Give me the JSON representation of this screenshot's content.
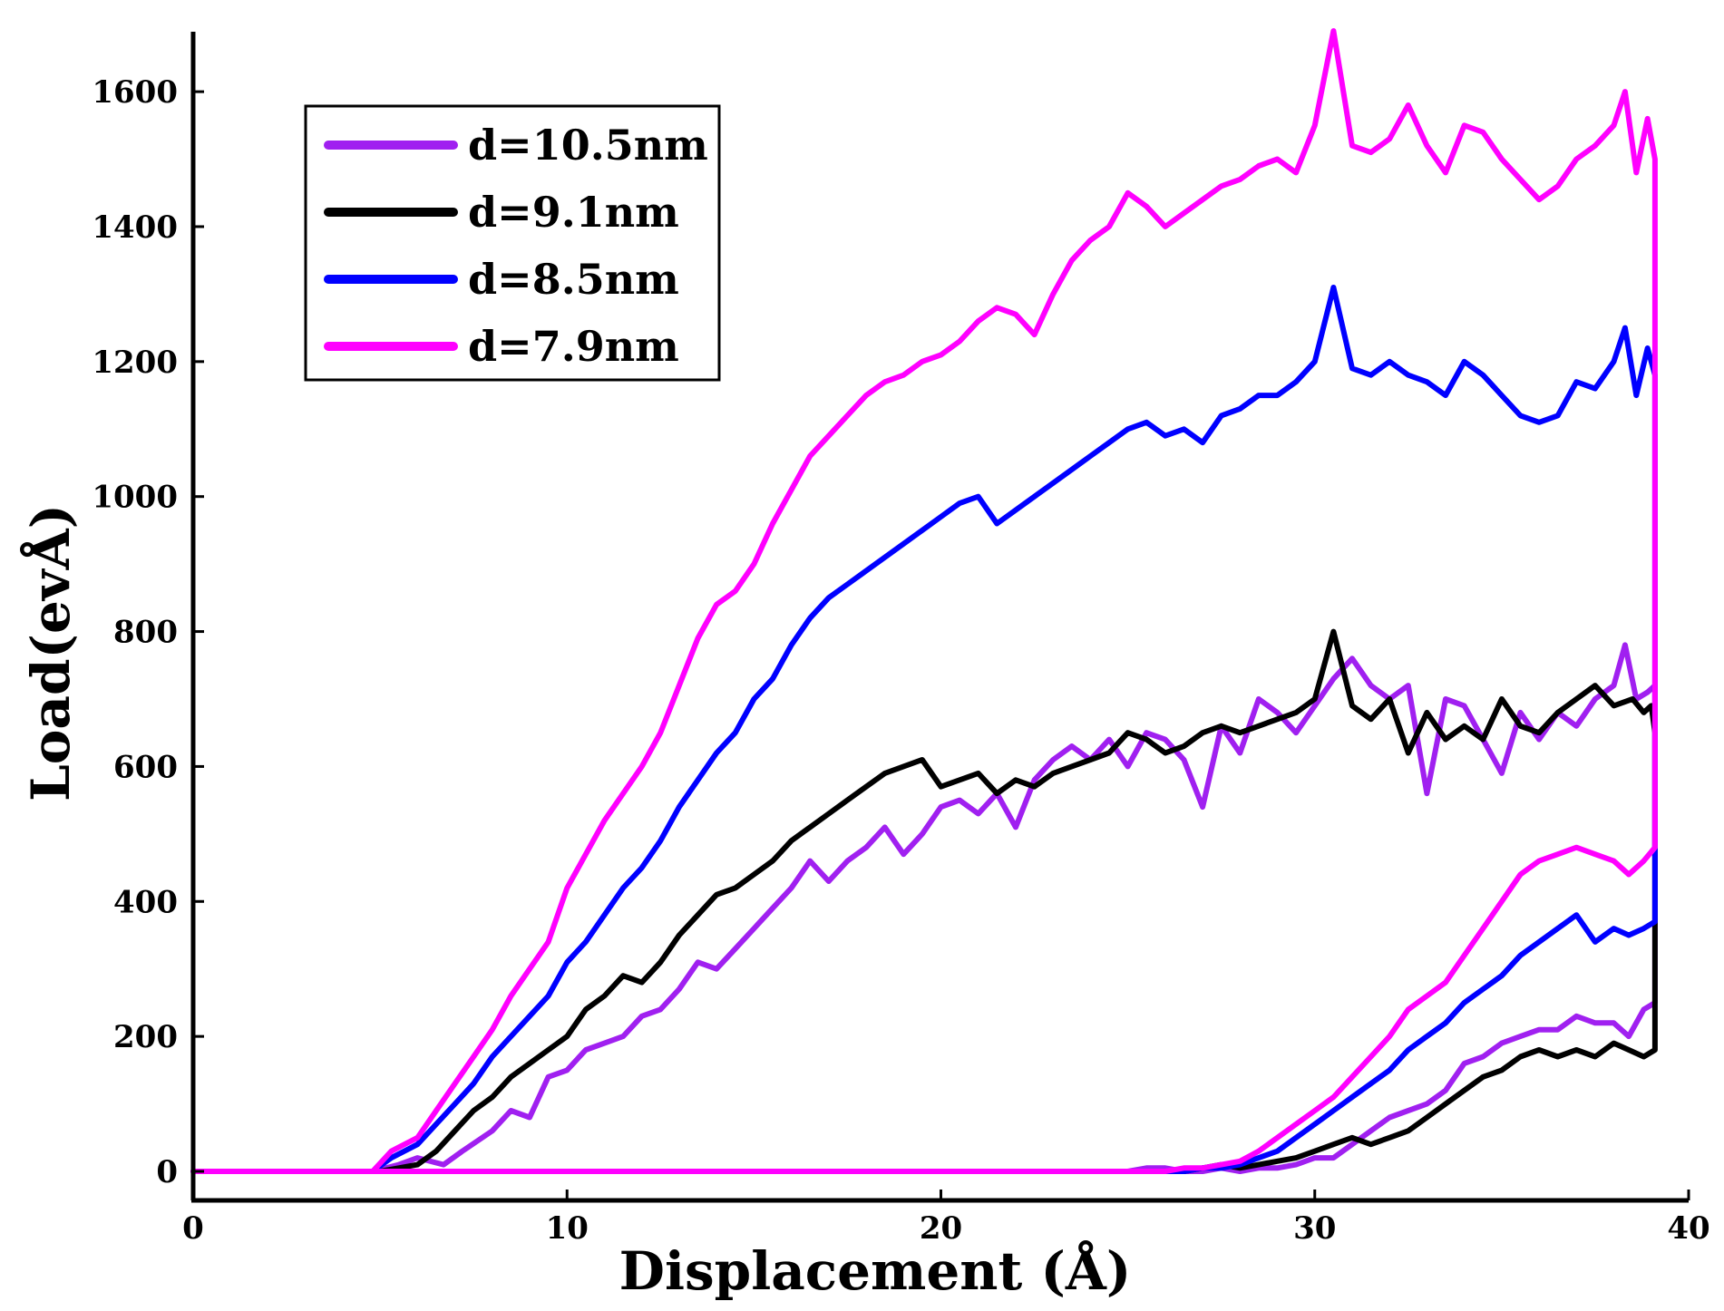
{
  "chart_data": {
    "type": "line",
    "title": "",
    "xlabel": "Displacement (Å)",
    "ylabel": "Load(evÅ)",
    "xlim": [
      0,
      40
    ],
    "ylim": [
      -50,
      1700
    ],
    "xticks": [
      "0",
      "10",
      "20",
      "30",
      "40"
    ],
    "yticks": [
      "0",
      "200",
      "400",
      "600",
      "800",
      "1000",
      "1200",
      "1400",
      "1600"
    ],
    "grid": false,
    "legend_position": "top-left",
    "series": [
      {
        "name": "d=10.5nm",
        "color": "#A020F0",
        "x": [
          0,
          4.8,
          5.5,
          6,
          6.7,
          7.2,
          8,
          8.5,
          9,
          9.5,
          10,
          10.5,
          11,
          11.5,
          12,
          12.5,
          13,
          13.5,
          14,
          14.5,
          15,
          15.5,
          16,
          16.5,
          17,
          17.5,
          18,
          18.5,
          19,
          19.5,
          20,
          20.5,
          21,
          21.5,
          22,
          22.5,
          23,
          23.5,
          24,
          24.5,
          25,
          25.5,
          26,
          26.5,
          27,
          27.5,
          28,
          28.5,
          29,
          29.5,
          30,
          30.5,
          31,
          31.5,
          32,
          32.5,
          33,
          33.5,
          34,
          34.5,
          35,
          35.5,
          36,
          36.5,
          37,
          37.5,
          38,
          38.3,
          38.6,
          38.9,
          39.1,
          39.1,
          38.8,
          38.4,
          38,
          37.5,
          37,
          36.5,
          36,
          35.5,
          35,
          34.5,
          34,
          33.5,
          33,
          32.5,
          32,
          31.5,
          31,
          30.5,
          30,
          29.5,
          29,
          28.5,
          28,
          27.5,
          27,
          26.5,
          26,
          25.5,
          25,
          24.5,
          24,
          23.5,
          23,
          22,
          20,
          10,
          0
        ],
        "y": [
          0,
          0,
          10,
          20,
          10,
          30,
          60,
          90,
          80,
          140,
          150,
          180,
          190,
          200,
          230,
          240,
          270,
          310,
          300,
          330,
          360,
          390,
          420,
          460,
          430,
          460,
          480,
          510,
          470,
          500,
          540,
          550,
          530,
          560,
          510,
          580,
          610,
          630,
          610,
          640,
          600,
          650,
          640,
          610,
          540,
          660,
          620,
          700,
          680,
          650,
          690,
          730,
          760,
          720,
          700,
          720,
          560,
          700,
          690,
          640,
          590,
          680,
          640,
          680,
          660,
          700,
          720,
          780,
          700,
          710,
          720,
          250,
          240,
          200,
          220,
          220,
          230,
          210,
          210,
          200,
          190,
          170,
          160,
          120,
          100,
          90,
          80,
          60,
          40,
          20,
          20,
          10,
          5,
          5,
          0,
          5,
          0,
          0,
          5,
          5,
          0,
          0,
          0,
          0,
          0,
          0,
          0,
          0,
          0
        ]
      },
      {
        "name": "d=9.1nm",
        "color": "#000000",
        "x": [
          0,
          5,
          5.5,
          6,
          6.5,
          7,
          7.5,
          8,
          8.5,
          9,
          9.5,
          10,
          10.5,
          11,
          11.5,
          12,
          12.5,
          13,
          13.5,
          14,
          14.5,
          15,
          15.5,
          16,
          16.5,
          17,
          17.5,
          18,
          18.5,
          19,
          19.5,
          20,
          20.5,
          21,
          21.5,
          22,
          22.5,
          23,
          23.5,
          24,
          24.5,
          25,
          25.5,
          26,
          26.5,
          27,
          27.5,
          28,
          28.5,
          29,
          29.5,
          30,
          30.5,
          31,
          31.5,
          32,
          32.5,
          33,
          33.5,
          34,
          34.5,
          35,
          35.5,
          36,
          36.5,
          37,
          37.5,
          38,
          38.5,
          38.8,
          39,
          39.1,
          39.1,
          38.8,
          38.4,
          38,
          37.5,
          37,
          36.5,
          36,
          35.5,
          35,
          34.5,
          34,
          33.5,
          33,
          32.5,
          32,
          31.5,
          31,
          30.5,
          30,
          29.5,
          29,
          28.5,
          28,
          27.5,
          27,
          26.5,
          26,
          25,
          24,
          23,
          22,
          20,
          10,
          0
        ],
        "y": [
          0,
          0,
          5,
          10,
          30,
          60,
          90,
          110,
          140,
          160,
          180,
          200,
          240,
          260,
          290,
          280,
          310,
          350,
          380,
          410,
          420,
          440,
          460,
          490,
          510,
          530,
          550,
          570,
          590,
          600,
          610,
          570,
          580,
          590,
          560,
          580,
          570,
          590,
          600,
          610,
          620,
          650,
          640,
          620,
          630,
          650,
          660,
          650,
          660,
          670,
          680,
          700,
          800,
          690,
          670,
          700,
          620,
          680,
          640,
          660,
          640,
          700,
          660,
          650,
          680,
          700,
          720,
          690,
          700,
          680,
          690,
          650,
          180,
          170,
          180,
          190,
          170,
          180,
          170,
          180,
          170,
          150,
          140,
          120,
          100,
          80,
          60,
          50,
          40,
          50,
          40,
          30,
          20,
          15,
          10,
          5,
          10,
          5,
          0,
          0,
          0,
          0,
          0,
          0,
          0,
          0,
          0
        ]
      },
      {
        "name": "d=8.5nm",
        "color": "#0000FF",
        "x": [
          0,
          4.8,
          5.3,
          6,
          6.5,
          7,
          7.5,
          8,
          8.5,
          9,
          9.5,
          10,
          10.5,
          11,
          11.5,
          12,
          12.5,
          13,
          13.5,
          14,
          14.5,
          15,
          15.5,
          16,
          16.5,
          17,
          17.5,
          18,
          18.5,
          19,
          19.5,
          20,
          20.5,
          21,
          21.5,
          22,
          22.5,
          23,
          23.5,
          24,
          24.5,
          25,
          25.5,
          26,
          26.5,
          27,
          27.5,
          28,
          28.5,
          29,
          29.5,
          30,
          30.5,
          31,
          31.5,
          32,
          32.5,
          33,
          33.5,
          34,
          34.5,
          35,
          35.5,
          36,
          36.5,
          37,
          37.5,
          38,
          38.3,
          38.6,
          38.9,
          39.1,
          39.1,
          38.8,
          38.4,
          38,
          37.5,
          37,
          36.5,
          36,
          35.5,
          35,
          34.5,
          34,
          33.5,
          33,
          32.5,
          32,
          31.5,
          31,
          30.5,
          30,
          29.5,
          29,
          28.5,
          28,
          27.5,
          27,
          26.5,
          26,
          25,
          24,
          23,
          22,
          20,
          10,
          0
        ],
        "y": [
          0,
          0,
          20,
          40,
          70,
          100,
          130,
          170,
          200,
          230,
          260,
          310,
          340,
          380,
          420,
          450,
          490,
          540,
          580,
          620,
          650,
          700,
          730,
          780,
          820,
          850,
          870,
          890,
          910,
          930,
          950,
          970,
          990,
          1000,
          960,
          980,
          1000,
          1020,
          1040,
          1060,
          1080,
          1100,
          1110,
          1090,
          1100,
          1080,
          1120,
          1130,
          1150,
          1150,
          1170,
          1200,
          1310,
          1190,
          1180,
          1200,
          1180,
          1170,
          1150,
          1200,
          1180,
          1150,
          1120,
          1110,
          1120,
          1170,
          1160,
          1200,
          1250,
          1150,
          1220,
          1180,
          370,
          360,
          350,
          360,
          340,
          380,
          360,
          340,
          320,
          290,
          270,
          250,
          220,
          200,
          180,
          150,
          130,
          110,
          90,
          70,
          50,
          30,
          20,
          10,
          5,
          5,
          0,
          0,
          0,
          0,
          0,
          0,
          0,
          0,
          0
        ]
      },
      {
        "name": "d=7.9nm",
        "color": "#FF00FF",
        "x": [
          0,
          4.8,
          5.3,
          6,
          6.5,
          7,
          7.5,
          8,
          8.5,
          9,
          9.5,
          10,
          10.5,
          11,
          11.5,
          12,
          12.5,
          13,
          13.5,
          14,
          14.5,
          15,
          15.5,
          16,
          16.5,
          17,
          17.5,
          18,
          18.5,
          19,
          19.5,
          20,
          20.5,
          21,
          21.5,
          22,
          22.5,
          23,
          23.5,
          24,
          24.5,
          25,
          25.5,
          26,
          26.5,
          27,
          27.5,
          28,
          28.5,
          29,
          29.5,
          30,
          30.5,
          31,
          31.5,
          32,
          32.5,
          33,
          33.5,
          34,
          34.5,
          35,
          35.5,
          36,
          36.5,
          37,
          37.5,
          38,
          38.3,
          38.6,
          38.9,
          39.1,
          39.1,
          38.8,
          38.4,
          38,
          37.5,
          37,
          36.5,
          36,
          35.5,
          35,
          34.5,
          34,
          33.5,
          33,
          32.5,
          32,
          31.5,
          31,
          30.5,
          30,
          29.5,
          29,
          28.5,
          28,
          27.5,
          27,
          26.5,
          26,
          25,
          24,
          23,
          22,
          20,
          10,
          0
        ],
        "y": [
          0,
          0,
          30,
          50,
          90,
          130,
          170,
          210,
          260,
          300,
          340,
          420,
          470,
          520,
          560,
          600,
          650,
          720,
          790,
          840,
          860,
          900,
          960,
          1010,
          1060,
          1090,
          1120,
          1150,
          1170,
          1180,
          1200,
          1210,
          1230,
          1260,
          1280,
          1270,
          1240,
          1300,
          1350,
          1380,
          1400,
          1450,
          1430,
          1400,
          1420,
          1440,
          1460,
          1470,
          1490,
          1500,
          1480,
          1550,
          1690,
          1520,
          1510,
          1530,
          1580,
          1520,
          1480,
          1550,
          1540,
          1500,
          1470,
          1440,
          1460,
          1500,
          1520,
          1550,
          1600,
          1480,
          1560,
          1500,
          480,
          460,
          440,
          460,
          470,
          480,
          470,
          460,
          440,
          400,
          360,
          320,
          280,
          260,
          240,
          200,
          170,
          140,
          110,
          90,
          70,
          50,
          30,
          15,
          10,
          5,
          5,
          0,
          0,
          0,
          0,
          0,
          0,
          0,
          0
        ]
      }
    ]
  }
}
